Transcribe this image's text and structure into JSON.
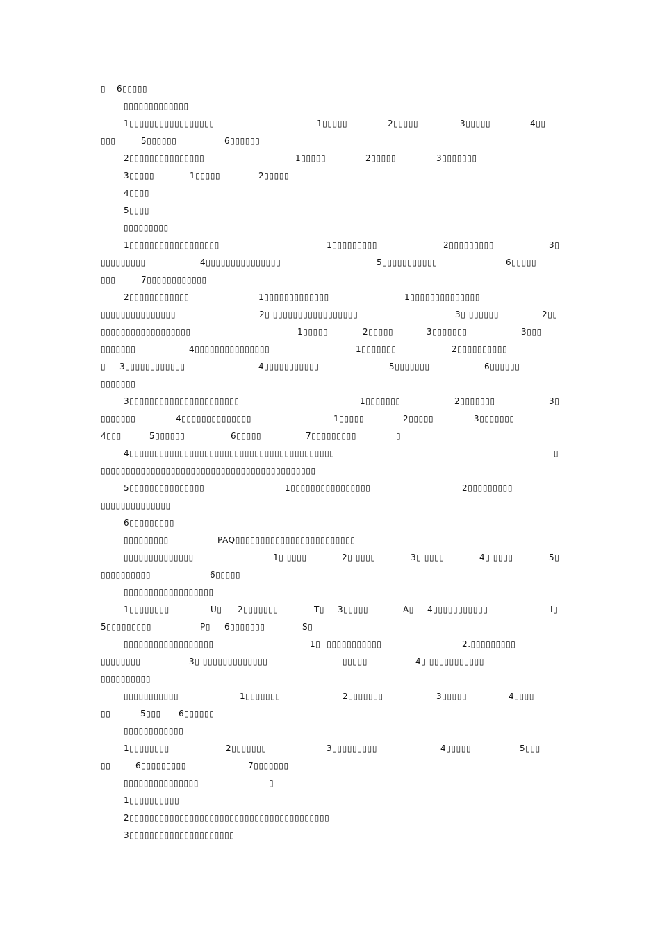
{
  "document": {
    "lines": [
      {
        "segments": [
          "▯",
          "6▯▯▯▯▯"
        ]
      },
      {
        "segments": [
          "▯▯▯▯▯▯▯▯▯▯▯▯▯"
        ]
      },
      {
        "segments": [
          "1▯▯▯▯▯▯▯▯▯▯▯▯▯▯▯▯▯",
          "1▯▯▯▯▯",
          "2▯▯▯▯▯",
          "3▯▯▯▯▯",
          "4▯▯"
        ]
      },
      {
        "segments": [
          "▯▯▯",
          "5▯▯▯▯▯▯",
          "6▯▯▯▯▯▯"
        ]
      },
      {
        "segments": [
          "2▯▯▯▯▯▯▯▯▯▯▯▯▯▯▯",
          "1▯▯▯▯▯",
          "2▯▯▯▯▯",
          "3▯▯▯▯▯▯▯"
        ]
      },
      {
        "segments": [
          "3▯▯▯▯▯",
          "1▯▯▯▯▯",
          "2▯▯▯▯▯"
        ]
      },
      {
        "segments": [
          "4▯▯▯▯"
        ]
      },
      {
        "segments": [
          "5▯▯▯▯"
        ]
      },
      {
        "segments": [
          "▯▯▯▯▯▯▯▯▯"
        ]
      },
      {
        "segments": [
          "1▯▯▯▯▯▯▯▯▯▯▯▯▯▯▯▯▯▯",
          "1▯▯▯▯▯▯▯▯▯",
          "2▯▯▯▯▯▯▯▯▯",
          "3▯"
        ]
      },
      {
        "segments": [
          "▯▯▯▯▯▯▯▯▯",
          "4▯▯▯▯▯▯▯▯▯▯▯▯▯▯▯",
          "5▯▯▯▯▯▯▯▯▯▯▯",
          "6▯▯▯▯▯"
        ]
      },
      {
        "segments": [
          "▯▯▯",
          "7▯▯▯▯▯▯▯▯▯▯▯▯"
        ]
      },
      {
        "segments": [
          "2▯▯▯▯▯▯▯▯▯▯▯▯",
          "1▯▯▯▯▯▯▯▯▯▯▯▯▯",
          "1▯▯▯▯▯▯▯▯▯▯▯▯▯▯"
        ]
      },
      {
        "segments": [
          "▯▯▯▯▯▯▯▯▯▯▯▯▯▯▯",
          "2▯ ▯▯▯▯▯▯▯▯▯▯▯▯▯▯▯▯▯",
          "3▯ ▯▯▯▯▯▯",
          "2▯▯"
        ]
      },
      {
        "segments": [
          "▯▯▯▯▯▯▯▯▯▯▯▯▯▯▯▯▯▯",
          "1▯▯▯▯▯",
          "2▯▯▯▯▯",
          "3▯▯▯▯▯▯▯",
          "3▯▯▯"
        ]
      },
      {
        "segments": [
          "▯▯▯▯▯▯▯",
          "4▯▯▯▯▯▯▯▯▯▯▯▯▯▯▯",
          "1▯▯▯▯▯▯▯",
          "2▯▯▯▯▯▯▯▯▯▯"
        ]
      },
      {
        "segments": [
          "▯",
          "3▯▯▯▯▯▯▯▯▯▯▯▯",
          "4▯▯▯▯▯▯▯▯▯▯▯",
          "5▯▯▯▯▯▯▯",
          "6▯▯▯▯▯▯"
        ]
      },
      {
        "segments": [
          "▯▯▯▯▯▯▯"
        ]
      },
      {
        "segments": [
          "3▯▯▯▯▯▯▯▯▯▯▯▯▯▯▯▯▯▯▯▯▯▯",
          "1▯▯▯▯▯▯▯",
          "2▯▯▯▯▯▯▯",
          "3▯"
        ]
      },
      {
        "segments": [
          "▯▯▯▯▯▯▯",
          "4▯▯▯▯▯▯▯▯▯▯▯▯▯▯",
          "1▯▯▯▯▯",
          "2▯▯▯▯▯",
          "3▯▯▯▯▯▯▯"
        ]
      },
      {
        "segments": [
          "4▯▯▯",
          "5▯▯▯▯▯▯",
          "6▯▯▯▯▯",
          "7▯▯▯▯▯▯▯▯▯",
          "▯"
        ]
      },
      {
        "segments": [
          "4▯▯▯▯▯▯▯▯▯▯▯▯▯▯▯▯▯▯▯▯▯▯▯▯▯▯▯▯▯▯▯▯▯▯▯▯▯▯▯▯▯",
          "▯"
        ]
      },
      {
        "segments": [
          "▯▯▯▯▯▯▯▯▯▯▯▯▯▯▯▯▯▯▯▯▯▯▯▯▯▯▯▯▯▯▯▯▯▯▯▯▯▯▯▯▯▯▯"
        ]
      },
      {
        "segments": [
          "5▯▯▯▯▯▯▯▯▯▯▯▯▯▯▯",
          "1▯▯▯▯▯▯▯▯▯▯▯▯▯▯▯▯",
          "2▯▯▯▯▯▯▯▯▯"
        ]
      },
      {
        "segments": [
          "▯▯▯▯▯▯▯▯▯▯▯▯▯▯"
        ]
      },
      {
        "segments": [
          "6▯▯▯▯▯▯▯▯▯"
        ]
      },
      {
        "segments": [
          "▯▯▯▯▯▯▯▯▯",
          "PAQ▯▯▯▯▯▯▯▯▯▯▯▯▯▯▯▯▯▯▯▯▯▯▯▯"
        ]
      },
      {
        "segments": [
          "▯▯▯▯▯▯▯▯▯▯▯▯▯▯",
          "1▯ ▯▯▯▯",
          "2▯ ▯▯▯▯",
          "3▯ ▯▯▯▯",
          "4▯ ▯▯▯▯",
          "5▯"
        ]
      },
      {
        "segments": [
          "▯▯▯▯▯▯▯▯▯▯",
          "6▯▯▯▯▯"
        ]
      },
      {
        "segments": [
          "▯▯▯▯▯▯▯▯▯▯▯▯▯▯▯▯▯▯"
        ]
      },
      {
        "segments": [
          "1▯▯▯▯▯▯▯▯",
          "U▯",
          "2▯▯▯▯▯▯▯",
          "T▯",
          "3▯▯▯▯▯",
          "A▯",
          "4▯▯▯▯▯▯▯▯▯▯▯",
          "I▯"
        ]
      },
      {
        "segments": [
          "5▯▯▯▯▯▯▯▯▯",
          "P▯",
          "6▯▯▯▯▯▯▯",
          "S▯"
        ]
      },
      {
        "segments": [
          "▯▯▯▯▯▯▯▯▯▯▯▯▯▯▯▯▯▯",
          "1▯  ▯▯▯▯▯▯▯▯▯▯▯",
          "2.▯▯▯▯▯▯▯▯▯"
        ]
      },
      {
        "segments": [
          "▯▯▯▯▯▯▯▯",
          "3▯ ▯▯▯▯▯▯▯▯▯▯▯▯▯",
          "▯▯▯▯▯",
          "4▯ ▯▯▯▯▯▯▯▯▯▯▯"
        ]
      },
      {
        "segments": [
          "▯▯▯▯▯▯▯▯▯▯"
        ]
      },
      {
        "segments": [
          "▯▯▯▯▯▯▯▯▯▯▯",
          "1▯▯▯▯▯▯▯",
          "2▯▯▯▯▯▯▯",
          "3▯▯▯▯▯",
          "4▯▯▯▯"
        ]
      },
      {
        "segments": [
          "▯▯",
          "5▯▯▯",
          "6▯▯▯▯▯▯"
        ]
      },
      {
        "segments": [
          "▯▯▯▯▯▯▯▯▯▯▯▯"
        ]
      },
      {
        "segments": [
          "1▯▯▯▯▯▯▯▯",
          "2▯▯▯▯▯▯▯",
          "3▯▯▯▯▯▯▯▯▯",
          "4▯▯▯▯▯",
          "5▯▯▯"
        ]
      },
      {
        "segments": [
          "▯▯",
          "6▯▯▯▯▯▯▯▯▯",
          "7▯▯▯▯▯▯▯"
        ]
      },
      {
        "segments": [
          "▯▯▯▯▯▯▯▯▯▯▯▯▯▯▯",
          "▯"
        ]
      },
      {
        "segments": [
          "1▯▯▯▯▯▯▯▯▯▯"
        ]
      },
      {
        "segments": [
          "2▯▯▯▯▯▯▯▯▯▯▯▯▯▯▯▯▯▯▯▯▯▯▯▯▯▯▯▯▯▯▯▯▯▯▯▯▯▯▯▯"
        ]
      },
      {
        "segments": [
          "3▯▯▯▯▯▯▯▯▯▯▯▯▯▯▯▯▯▯▯▯▯"
        ]
      }
    ]
  }
}
